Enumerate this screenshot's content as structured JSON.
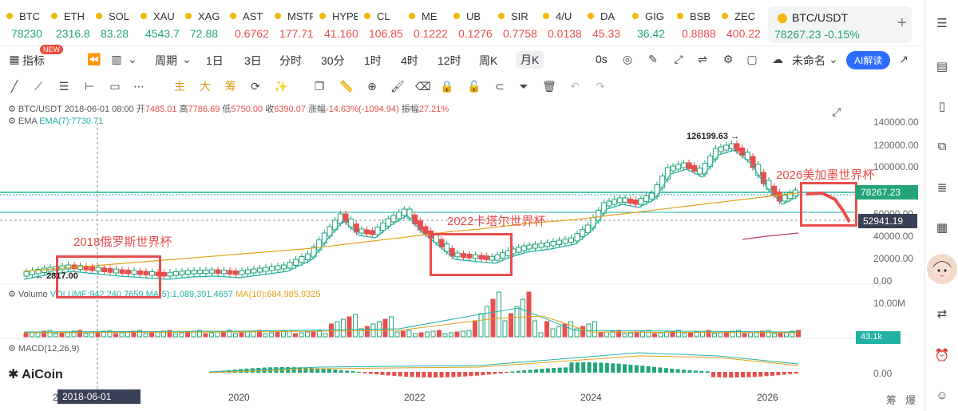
{
  "ticker": {
    "items": [
      {
        "name": "BTC",
        "price": "78230",
        "dir": "up"
      },
      {
        "name": "ETH",
        "price": "2316.8",
        "dir": "up"
      },
      {
        "name": "SOL",
        "price": "83.28",
        "dir": "up"
      },
      {
        "name": "XAU",
        "price": "4543.7",
        "dir": "up"
      },
      {
        "name": "XAG",
        "price": "72.88",
        "dir": "up"
      },
      {
        "name": "AST",
        "price": "0.6762",
        "dir": "dn"
      },
      {
        "name": "MSTR",
        "price": "177.71",
        "dir": "dn"
      },
      {
        "name": "HYPE",
        "price": "41.160",
        "dir": "dn"
      },
      {
        "name": "CL",
        "price": "106.85",
        "dir": "dn"
      },
      {
        "name": "ME",
        "price": "0.1222",
        "dir": "dn"
      },
      {
        "name": "UB",
        "price": "0.1276",
        "dir": "dn"
      },
      {
        "name": "SIR",
        "price": "0.7758",
        "dir": "dn"
      },
      {
        "name": "4/U",
        "price": "0.0138",
        "dir": "dn"
      },
      {
        "name": "DA",
        "price": "45.33",
        "dir": "dn"
      },
      {
        "name": "GIG",
        "price": "36.42",
        "dir": "up"
      },
      {
        "name": "BSB",
        "price": "0.8888",
        "dir": "dn"
      },
      {
        "name": "ZEC",
        "price": "400.22",
        "dir": "dn"
      }
    ],
    "active": {
      "name": "BTC/USDT",
      "price": "78267.23",
      "change": "-0.15%"
    },
    "add": "+"
  },
  "toolbar1": {
    "indicator": "指标",
    "new_badge": "NEW",
    "period": "周期",
    "periods": [
      "1日",
      "3日",
      "分时",
      "30分",
      "1时",
      "4时",
      "12时",
      "周K",
      "月K"
    ],
    "active_period": "月K",
    "zero_s": "0s",
    "unnamed": "未命名",
    "ai": "AI解读"
  },
  "toolbar2": {
    "chars": [
      "主",
      "大",
      "筹"
    ]
  },
  "info": {
    "symbol": "BTC/USDT",
    "date": "2018-06-01 08:00",
    "open_label": "开",
    "open": "7485.01",
    "high_label": "高",
    "high": "7786.69",
    "low_label": "低",
    "low": "5750.00",
    "close_label": "收",
    "close": "6390.07",
    "chg_label": "涨幅",
    "chg": "-14.63%(-1094.94)",
    "amp_label": "振幅",
    "amp": "27.21%",
    "ema": "EMA",
    "ema7": "EMA(7):7730.71",
    "volume_line_a": "Volume",
    "volume_line_b": "VOLUME:942,240.7659",
    "ma5": "MA(5):1,089,391.4657",
    "ma10": "MA(10):684,985.9325",
    "macd": "MACD(12,26,9)"
  },
  "axis": {
    "y_labels": [
      "140000.00",
      "120000.00",
      "100000.00",
      "60000.00",
      "40000.00",
      "20000.00",
      "0.00"
    ],
    "vol_label": "10.00M",
    "macd_label": "0.00",
    "x_labels": [
      "2020",
      "2022",
      "2024",
      "2026"
    ],
    "x_first": "2"
  },
  "tags": {
    "price": "78267.23",
    "cross": "52941.19",
    "vol": "43.1k",
    "date": "2018-06-01 08:00"
  },
  "markers": {
    "high": "126199.63",
    "low": "2817.00"
  },
  "annotations": {
    "wc2018": "2018俄罗斯世界杯",
    "wc2022": "2022卡塔尔世界杯",
    "wc2026": "2026美加墨世界杯"
  },
  "logo": "AiCoin",
  "bottom": {
    "chou": "筹",
    "bao": "爆"
  },
  "colors": {
    "up": "#22a57a",
    "down": "#e84e4e",
    "accent": "#2d6cff",
    "annotation": "#e84e4e"
  }
}
